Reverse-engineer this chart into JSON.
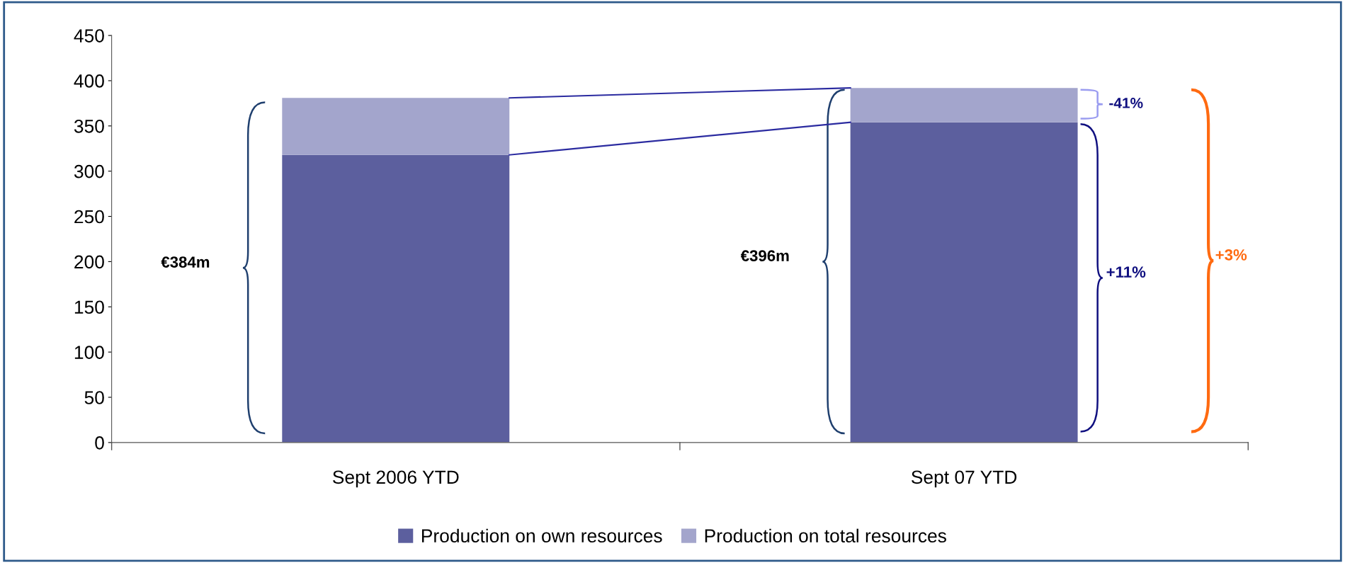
{
  "chart_data": {
    "type": "bar",
    "stacked": true,
    "categories": [
      "Sept 2006 YTD",
      "Sept 07 YTD"
    ],
    "series": [
      {
        "name": "Production on own resources",
        "color": "#5c5f9e",
        "values": [
          318,
          354
        ]
      },
      {
        "name": "Production on total resources",
        "color": "#a3a5cc",
        "values": [
          63,
          38
        ]
      }
    ],
    "ylim": [
      0,
      450
    ],
    "yticks": [
      0,
      50,
      100,
      150,
      200,
      250,
      300,
      350,
      400,
      450
    ],
    "grid": false,
    "legend": "bottom",
    "annotations": [
      "€384m",
      "€396m",
      "-41%",
      "+11%",
      "+3%"
    ]
  }
}
